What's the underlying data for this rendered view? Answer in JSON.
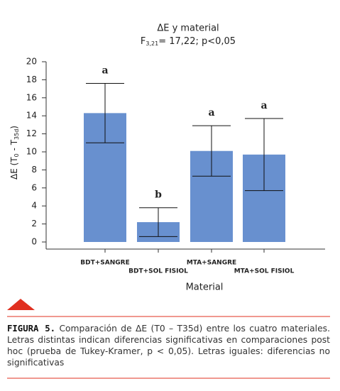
{
  "chart_data": {
    "type": "bar",
    "title": "ΔE y material",
    "subtitle": {
      "main": "F",
      "sub": "3,21",
      "rest": "= 17,22; p<0,05"
    },
    "y_label": [
      "ΔE (T",
      "0",
      " - T",
      "35d",
      ")"
    ],
    "x_label": "Material",
    "categories": [
      "BDT+SANGRE",
      "BDT+SOL FISIOL",
      "MTA+SANGRE",
      "MTA+SOL FISIOL"
    ],
    "values": [
      14.3,
      2.2,
      10.1,
      9.7
    ],
    "errors": [
      3.3,
      1.6,
      2.8,
      4.0
    ],
    "letters": [
      "a",
      "b",
      "a",
      "a"
    ],
    "color": "#6890cf",
    "ylim": [
      0,
      20
    ],
    "yticks": [
      0,
      2,
      4,
      6,
      8,
      10,
      12,
      14,
      16,
      18,
      20
    ]
  },
  "caption": {
    "label": "FIGURA 5.",
    "text": "Comparación de ΔE (T0 – T35d) entre los cuatro materiales. Letras distintas indican diferencias significativas en comparaciones post hoc (prueba de Tukey-Kramer, p < 0,05). Letras iguales: diferencias no significativas"
  }
}
